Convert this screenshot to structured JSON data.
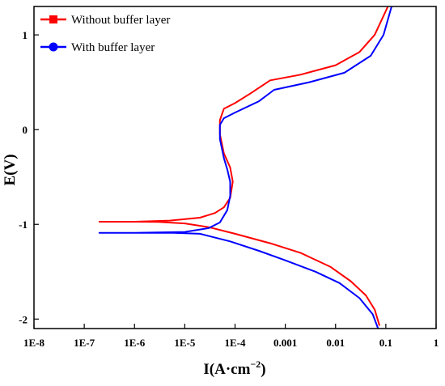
{
  "chart_data": {
    "type": "line",
    "xlabel_main": "I(A·cm",
    "xlabel_sup": "−2",
    "xlabel_end": ")",
    "ylabel": "E(V)",
    "xscale": "log",
    "xlim": [
      1e-08,
      1
    ],
    "ylim": [
      -2.1,
      1.3
    ],
    "grid": false,
    "legend_position": "top-left",
    "x_ticks": [
      {
        "value": 1e-08,
        "label": "1E-8"
      },
      {
        "value": 1e-07,
        "label": "1E-7"
      },
      {
        "value": 1e-06,
        "label": "1E-6"
      },
      {
        "value": 1e-05,
        "label": "1E-5"
      },
      {
        "value": 0.0001,
        "label": "1E-4"
      },
      {
        "value": 0.001,
        "label": "0.001"
      },
      {
        "value": 0.01,
        "label": "0.01"
      },
      {
        "value": 0.1,
        "label": "0.1"
      },
      {
        "value": 1,
        "label": "1"
      }
    ],
    "y_ticks": [
      {
        "value": 1,
        "label": "1"
      },
      {
        "value": 0,
        "label": "0"
      },
      {
        "value": -1,
        "label": "-1"
      },
      {
        "value": -2,
        "label": "-2"
      }
    ],
    "series": [
      {
        "name": "Without buffer layer",
        "color": "#ff0000",
        "marker": "square",
        "points": [
          [
            0.075,
            -2.07
          ],
          [
            0.06,
            -1.9
          ],
          [
            0.04,
            -1.75
          ],
          [
            0.02,
            -1.6
          ],
          [
            0.008,
            -1.45
          ],
          [
            0.002,
            -1.3
          ],
          [
            0.0005,
            -1.2
          ],
          [
            0.0001,
            -1.1
          ],
          [
            3e-05,
            -1.03
          ],
          [
            1e-05,
            -0.99
          ],
          [
            3e-06,
            -0.975
          ],
          [
            1e-06,
            -0.972
          ],
          [
            2e-07,
            -0.972
          ],
          [
            1e-06,
            -0.972
          ],
          [
            5e-06,
            -0.96
          ],
          [
            2e-05,
            -0.93
          ],
          [
            4e-05,
            -0.88
          ],
          [
            6e-05,
            -0.82
          ],
          [
            8e-05,
            -0.72
          ],
          [
            9e-05,
            -0.55
          ],
          [
            8e-05,
            -0.4
          ],
          [
            6e-05,
            -0.25
          ],
          [
            5e-05,
            -0.05
          ],
          [
            5e-05,
            0.1
          ],
          [
            6e-05,
            0.22
          ],
          [
            0.0001,
            0.28
          ],
          [
            0.0002,
            0.38
          ],
          [
            0.0005,
            0.52
          ],
          [
            0.002,
            0.58
          ],
          [
            0.01,
            0.68
          ],
          [
            0.03,
            0.82
          ],
          [
            0.06,
            1.0
          ],
          [
            0.09,
            1.2
          ],
          [
            0.11,
            1.3
          ]
        ]
      },
      {
        "name": "With buffer layer",
        "color": "#0000ff",
        "marker": "circle",
        "points": [
          [
            0.07,
            -2.1
          ],
          [
            0.055,
            -1.95
          ],
          [
            0.03,
            -1.78
          ],
          [
            0.012,
            -1.62
          ],
          [
            0.004,
            -1.5
          ],
          [
            0.001,
            -1.38
          ],
          [
            0.0003,
            -1.28
          ],
          [
            8e-05,
            -1.18
          ],
          [
            2e-05,
            -1.1
          ],
          [
            6e-06,
            -1.09
          ],
          [
            1e-06,
            -1.09
          ],
          [
            2e-07,
            -1.09
          ],
          [
            1e-06,
            -1.09
          ],
          [
            1e-05,
            -1.08
          ],
          [
            3e-05,
            -1.04
          ],
          [
            5e-05,
            -0.98
          ],
          [
            7e-05,
            -0.85
          ],
          [
            8e-05,
            -0.7
          ],
          [
            8e-05,
            -0.55
          ],
          [
            7e-05,
            -0.42
          ],
          [
            6e-05,
            -0.3
          ],
          [
            5e-05,
            -0.1
          ],
          [
            5e-05,
            0.05
          ],
          [
            6e-05,
            0.12
          ],
          [
            0.0001,
            0.18
          ],
          [
            0.0003,
            0.3
          ],
          [
            0.0006,
            0.42
          ],
          [
            0.003,
            0.5
          ],
          [
            0.015,
            0.6
          ],
          [
            0.05,
            0.78
          ],
          [
            0.09,
            1.0
          ],
          [
            0.13,
            1.3
          ]
        ]
      }
    ]
  }
}
